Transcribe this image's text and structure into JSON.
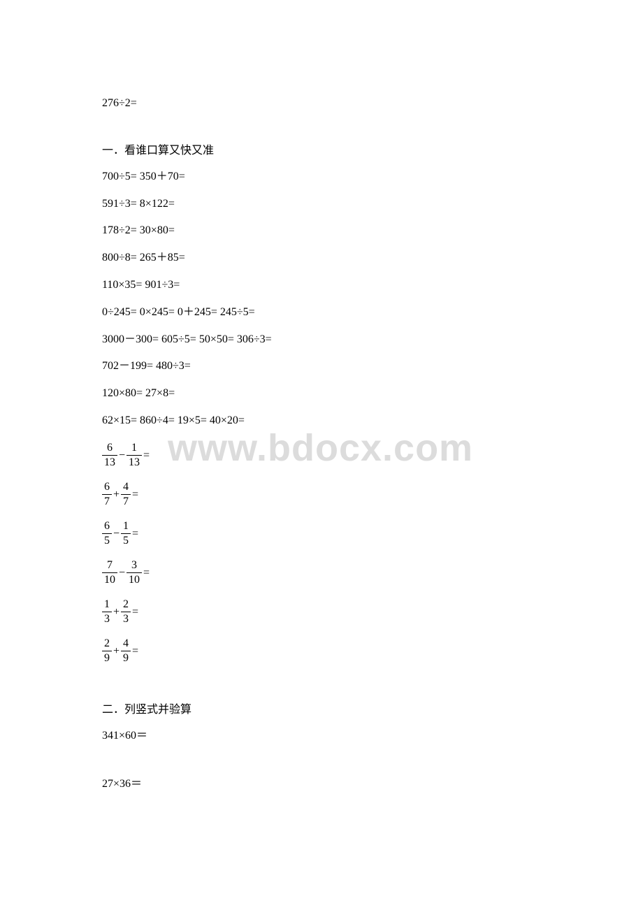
{
  "watermark": "www.bdocx.com",
  "top_line": "276÷2=",
  "section1": {
    "title": "一．看谁口算又快又准",
    "lines": [
      "700÷5= 350＋70=",
      "591÷3= 8×122=",
      "178÷2= 30×80=",
      "800÷8= 265＋85=",
      "110×35= 901÷3=",
      "0÷245= 0×245= 0＋245= 245÷5=",
      "3000－300= 605÷5= 50×50= 306÷3=",
      "702－199= 480÷3=",
      "120×80= 27×8=",
      "62×15= 860÷4= 19×5= 40×20="
    ]
  },
  "fractions": [
    {
      "n1": "6",
      "d1": "13",
      "op": "−",
      "n2": "1",
      "d2": "13"
    },
    {
      "n1": "6",
      "d1": "7",
      "op": "+",
      "n2": "4",
      "d2": "7"
    },
    {
      "n1": "6",
      "d1": "5",
      "op": "−",
      "n2": "1",
      "d2": "5"
    },
    {
      "n1": "7",
      "d1": "10",
      "op": "−",
      "n2": "3",
      "d2": "10"
    },
    {
      "n1": "1",
      "d1": "3",
      "op": "+",
      "n2": "2",
      "d2": "3"
    },
    {
      "n1": "2",
      "d1": "9",
      "op": "+",
      "n2": "4",
      "d2": "9"
    }
  ],
  "section2": {
    "title": "二．列竖式并验算",
    "lines": [
      "341×60＝",
      "27×36＝"
    ]
  },
  "colors": {
    "text": "#000000",
    "background": "#ffffff",
    "watermark": "#dcdcdc"
  }
}
